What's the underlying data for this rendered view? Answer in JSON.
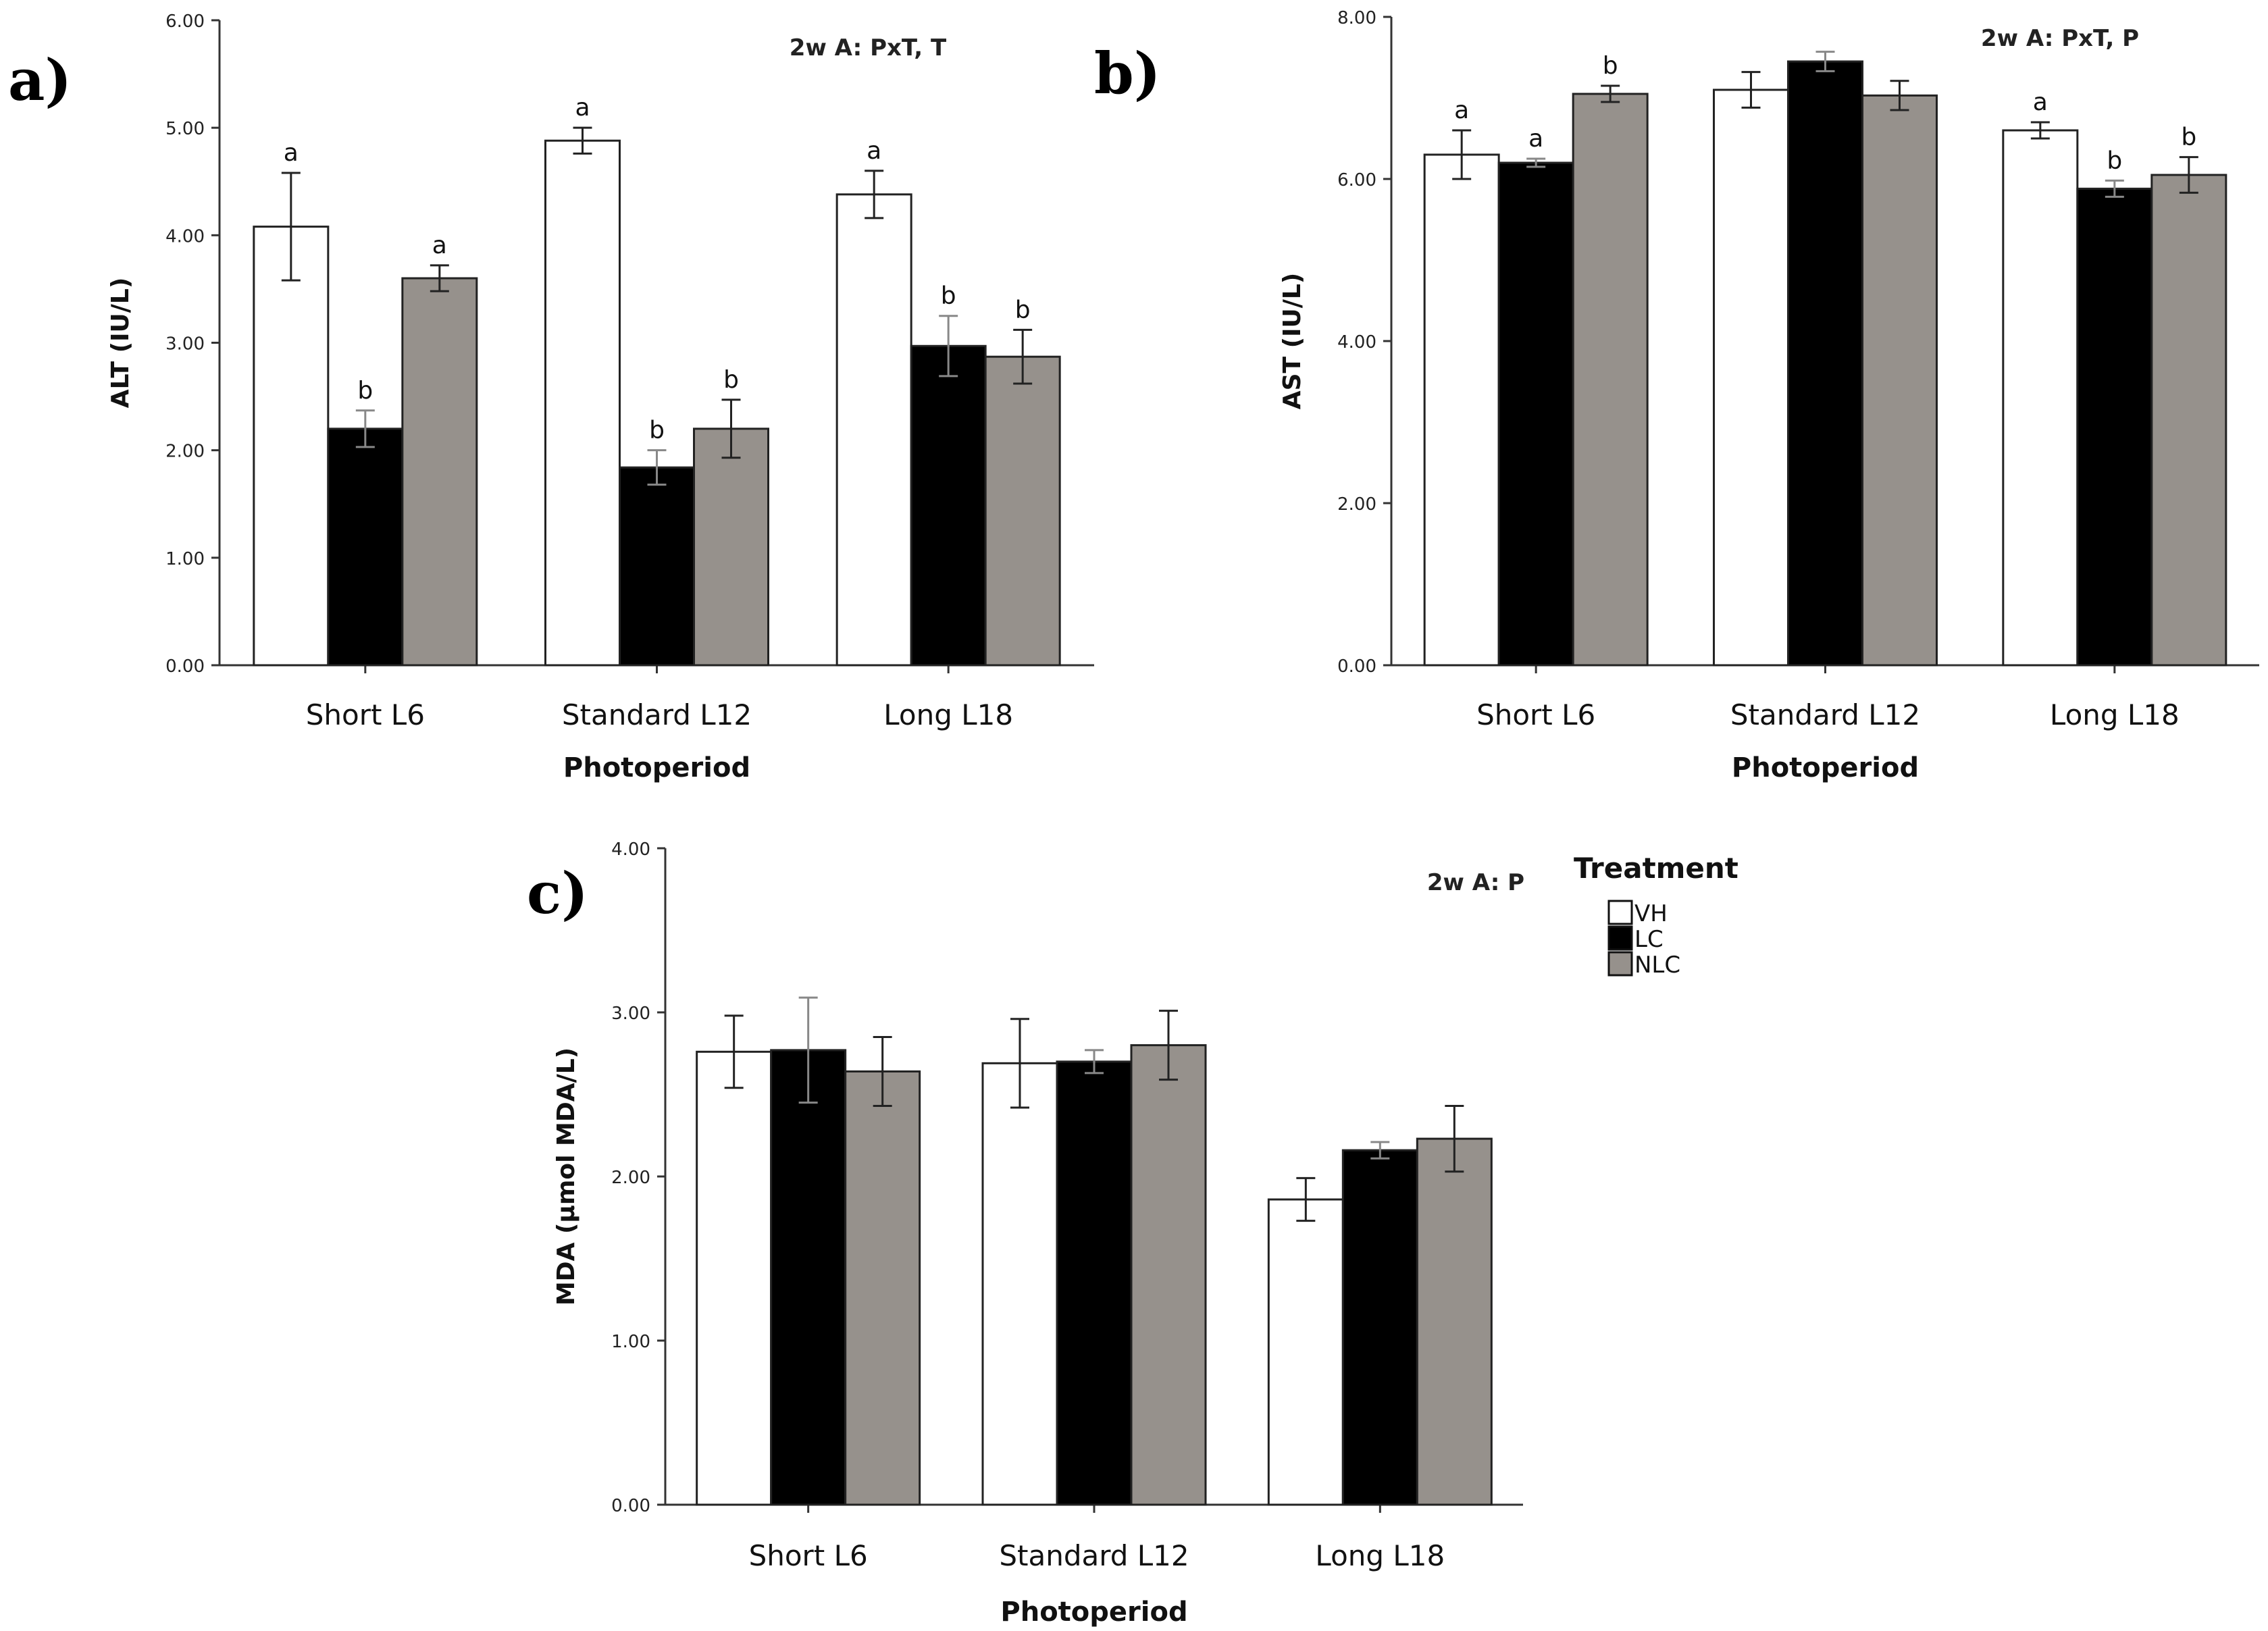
{
  "panel_labels": [
    "a)",
    "b)",
    "c)"
  ],
  "legend": {
    "title": "Treatment",
    "items": [
      {
        "label": "VH",
        "color": "#ffffff"
      },
      {
        "label": "LC",
        "color": "#000000"
      },
      {
        "label": "NLC",
        "color": "#96918c"
      }
    ]
  },
  "chart_data": [
    {
      "type": "bar",
      "annotation": "2w A: PxT, T",
      "xlabel": "Photoperiod",
      "ylabel": "ALT (IU/L)",
      "ylim": [
        0,
        6
      ],
      "yticks": [
        "0.00",
        "1.00",
        "2.00",
        "3.00",
        "4.00",
        "5.00",
        "6.00"
      ],
      "categories": [
        "Short L6",
        "Standard L12",
        "Long L18"
      ],
      "series": [
        {
          "name": "VH",
          "values": [
            4.08,
            4.88,
            4.38
          ],
          "errors": [
            0.5,
            0.12,
            0.22
          ],
          "sig": [
            "a",
            "a",
            "a"
          ]
        },
        {
          "name": "LC",
          "values": [
            2.2,
            1.84,
            2.97
          ],
          "errors": [
            0.17,
            0.16,
            0.28
          ],
          "sig": [
            "b",
            "b",
            "b"
          ]
        },
        {
          "name": "NLC",
          "values": [
            3.6,
            2.2,
            2.87
          ],
          "errors": [
            0.12,
            0.27,
            0.25
          ],
          "sig": [
            "a",
            "b",
            "b"
          ]
        }
      ]
    },
    {
      "type": "bar",
      "annotation": "2w A: PxT, P",
      "xlabel": "Photoperiod",
      "ylabel": "AST (IU/L)",
      "ylim": [
        0,
        8
      ],
      "yticks": [
        "0.00",
        "2.00",
        "4.00",
        "6.00",
        "8.00"
      ],
      "categories": [
        "Short L6",
        "Standard L12",
        "Long L18"
      ],
      "series": [
        {
          "name": "VH",
          "values": [
            6.3,
            7.1,
            6.6
          ],
          "errors": [
            0.3,
            0.22,
            0.1
          ],
          "sig": [
            "a",
            "",
            "a"
          ]
        },
        {
          "name": "LC",
          "values": [
            6.2,
            7.45,
            5.88
          ],
          "errors": [
            0.05,
            0.12,
            0.1
          ],
          "sig": [
            "a",
            "",
            "b"
          ]
        },
        {
          "name": "NLC",
          "values": [
            7.05,
            7.03,
            6.05
          ],
          "errors": [
            0.1,
            0.18,
            0.22
          ],
          "sig": [
            "b",
            "",
            "b"
          ]
        }
      ]
    },
    {
      "type": "bar",
      "annotation": "2w A: P",
      "xlabel": "Photoperiod",
      "ylabel": "MDA (μmol MDA/L)",
      "ylim": [
        0,
        4
      ],
      "yticks": [
        "0.00",
        "1.00",
        "2.00",
        "3.00",
        "4.00"
      ],
      "categories": [
        "Short L6",
        "Standard L12",
        "Long L18"
      ],
      "series": [
        {
          "name": "VH",
          "values": [
            2.76,
            2.69,
            1.86
          ],
          "errors": [
            0.22,
            0.27,
            0.13
          ],
          "sig": [
            "",
            "",
            ""
          ]
        },
        {
          "name": "LC",
          "values": [
            2.77,
            2.7,
            2.16
          ],
          "errors": [
            0.32,
            0.07,
            0.05
          ],
          "sig": [
            "",
            "",
            ""
          ]
        },
        {
          "name": "NLC",
          "values": [
            2.64,
            2.8,
            2.23
          ],
          "errors": [
            0.21,
            0.21,
            0.2
          ],
          "sig": [
            "",
            "",
            ""
          ]
        }
      ]
    }
  ]
}
